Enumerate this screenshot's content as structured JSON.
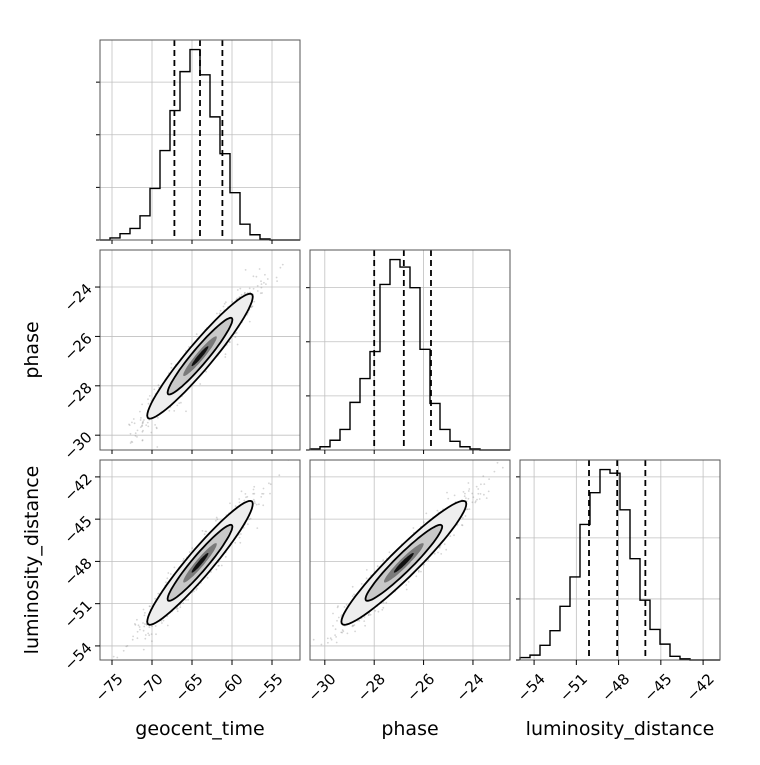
{
  "chart_data": {
    "type": "corner",
    "parameters": [
      "geocent_time",
      "phase",
      "luminosity_distance"
    ],
    "axis_labels": {
      "x": [
        "geocent_time",
        "phase",
        "luminosity_distance"
      ],
      "y": [
        "",
        "phase",
        "luminosity_distance"
      ]
    },
    "ranges": {
      "geocent_time": [
        -76.5,
        -51.5
      ],
      "phase": [
        -30.6,
        -22.5
      ],
      "luminosity_distance": [
        -55.0,
        -40.8
      ]
    },
    "ticks": {
      "geocent_time": [
        -75,
        -70,
        -65,
        -60,
        -55
      ],
      "phase": [
        -30,
        -28,
        -26,
        -24
      ],
      "luminosity_distance": [
        -54,
        -51,
        -48,
        -45,
        -42
      ]
    },
    "tick_labels": {
      "geocent_time": [
        "−75",
        "−70",
        "−65",
        "−60",
        "−55"
      ],
      "phase": [
        "−30",
        "−28",
        "−26",
        "−24"
      ],
      "luminosity_distance": [
        "−54",
        "−51",
        "−48",
        "−45",
        "−42"
      ]
    },
    "quantiles": {
      "geocent_time": [
        -67.2,
        -64.0,
        -61.2
      ],
      "phase": [
        -28.0,
        -26.8,
        -25.7
      ],
      "luminosity_distance": [
        -50.1,
        -48.1,
        -46.1
      ]
    },
    "histograms": {
      "geocent_time": {
        "bin_edges": [
          -76.5,
          -75.25,
          -74.0,
          -72.75,
          -71.5,
          -70.25,
          -69.0,
          -67.75,
          -66.5,
          -65.25,
          -64.0,
          -62.75,
          -61.5,
          -60.25,
          -59.0,
          -57.75,
          -56.5,
          -55.25,
          -54.0,
          -52.75,
          -51.5
        ],
        "counts": [
          0,
          2,
          6,
          11,
          23,
          49,
          85,
          123,
          160,
          181,
          157,
          117,
          82,
          45,
          15,
          5,
          1,
          0,
          0,
          0
        ]
      },
      "phase": {
        "bin_edges": [
          -30.6,
          -30.195,
          -29.79,
          -29.385,
          -28.98,
          -28.575,
          -28.17,
          -27.765,
          -27.36,
          -26.955,
          -26.55,
          -26.145,
          -25.74,
          -25.335,
          -24.93,
          -24.525,
          -24.12,
          -23.715,
          -23.31,
          -22.905,
          -22.5
        ],
        "counts": [
          1,
          3,
          9,
          19,
          44,
          66,
          91,
          153,
          176,
          169,
          150,
          93,
          43,
          19,
          8,
          3,
          1,
          0,
          0,
          0
        ]
      },
      "luminosity_distance": {
        "bin_edges": [
          -55.0,
          -54.29,
          -53.58,
          -52.87,
          -52.16,
          -51.45,
          -50.74,
          -50.03,
          -49.32,
          -48.61,
          -47.9,
          -47.19,
          -46.48,
          -45.77,
          -45.06,
          -44.35,
          -43.64,
          -42.93,
          -42.22,
          -41.51,
          -40.8
        ],
        "counts": [
          2,
          4,
          12,
          24,
          44,
          68,
          111,
          137,
          156,
          153,
          123,
          83,
          49,
          25,
          13,
          3,
          1,
          0,
          0,
          0
        ]
      }
    },
    "correlations": {
      "phase|geocent_time": 0.95,
      "luminosity_distance|geocent_time": 0.95,
      "luminosity_distance|phase": 0.95
    },
    "grid": true,
    "contour_levels_sigma": [
      1,
      2
    ]
  }
}
